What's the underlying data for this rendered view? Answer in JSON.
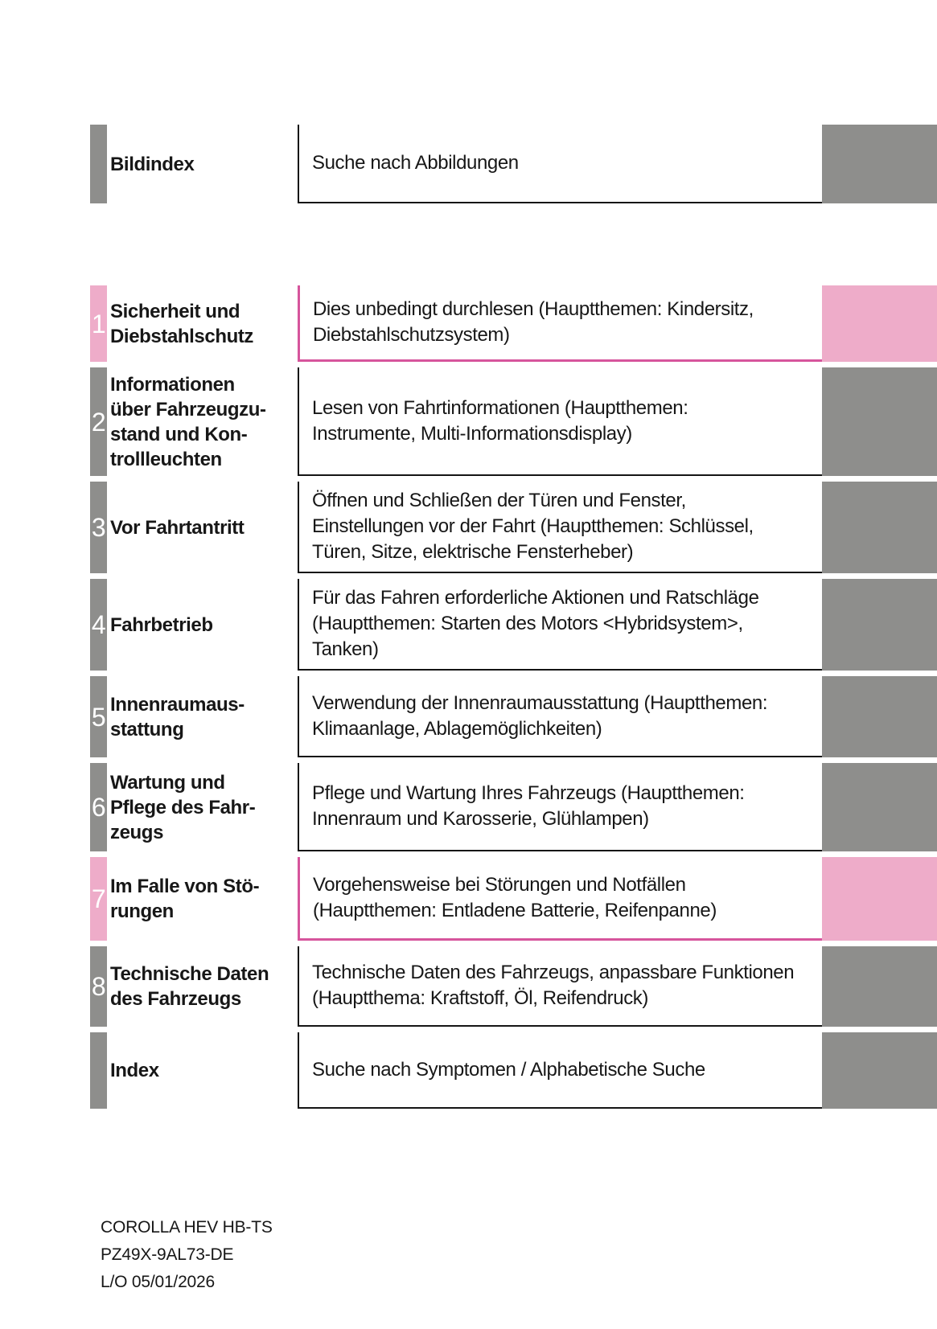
{
  "colors": {
    "tab_gray": "#8e8e8c",
    "tab_pink": "#eeacc9",
    "border_dark": "#151515",
    "border_pink": "#d6559c",
    "text": "#171717",
    "number_text": "#ffffff"
  },
  "toc": {
    "rows": [
      {
        "number": "",
        "accent": "gray",
        "label": "Bildindex",
        "description": "Suche nach Abbildungen"
      },
      {
        "number": "1",
        "accent": "pink",
        "label": "Sicherheit und\nDiebstahlschutz",
        "description": "Dies unbedingt durchlesen (Hauptthemen: Kindersitz,\nDiebstahlschutzsystem)"
      },
      {
        "number": "2",
        "accent": "gray",
        "label": "Informationen\nüber Fahrzeugzu-\nstand und Kon-\ntrollleuchten",
        "description": "Lesen von Fahrtinformationen (Hauptthemen:\nInstrumente, Multi-Informationsdisplay)"
      },
      {
        "number": "3",
        "accent": "gray",
        "label": "Vor Fahrtantritt",
        "description": "Öffnen und Schließen der Türen und Fenster,\nEinstellungen vor der Fahrt (Hauptthemen: Schlüssel,\nTüren, Sitze, elektrische Fensterheber)"
      },
      {
        "number": "4",
        "accent": "gray",
        "label": "Fahrbetrieb",
        "description": "Für das Fahren erforderliche Aktionen und Ratschläge\n(Hauptthemen: Starten des Motors <Hybridsystem>,\nTanken)"
      },
      {
        "number": "5",
        "accent": "gray",
        "label": "Innenraumaus-\nstattung",
        "description": "Verwendung der Innenraumausstattung (Hauptthemen:\nKlimaanlage, Ablagemöglichkeiten)"
      },
      {
        "number": "6",
        "accent": "gray",
        "label": "Wartung und\nPflege des Fahr-\nzeugs",
        "description": "Pflege und Wartung Ihres Fahrzeugs (Hauptthemen:\nInnenraum und Karosserie, Glühlampen)"
      },
      {
        "number": "7",
        "accent": "pink",
        "label": "Im Falle von Stö-\nrungen",
        "description": "Vorgehensweise bei Störungen und Notfällen\n(Hauptthemen: Entladene Batterie, Reifenpanne)"
      },
      {
        "number": "8",
        "accent": "gray",
        "label": "Technische Daten\ndes Fahrzeugs",
        "description": "Technische Daten des Fahrzeugs, anpassbare Funktionen\n(Hauptthema: Kraftstoff, Öl, Reifendruck)"
      },
      {
        "number": "",
        "accent": "gray",
        "label": "Index",
        "description": "Suche nach Symptomen / Alphabetische Suche"
      }
    ]
  },
  "footer": {
    "lines": [
      "COROLLA HEV HB-TS",
      "PZ49X-9AL73-DE",
      "L/O 05/01/2026"
    ]
  }
}
